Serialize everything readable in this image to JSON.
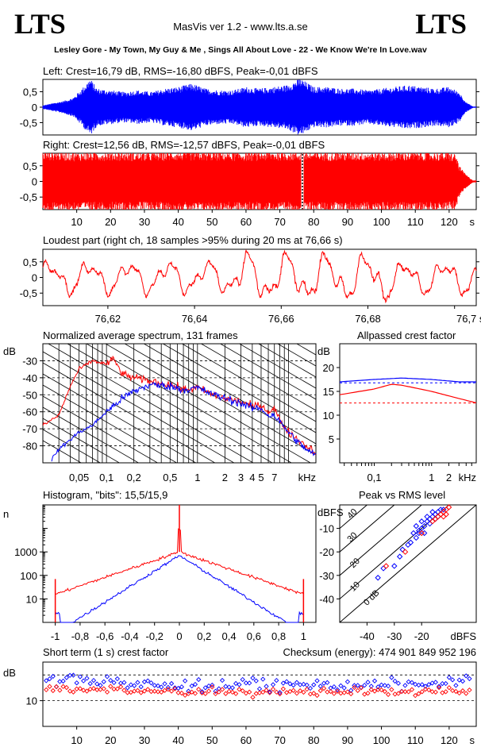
{
  "header": {
    "logo_left": "LTS",
    "logo_right": "LTS",
    "app_title": "MasVis ver 1.2 - www.lts.a.se",
    "file_title": "Lesley Gore - My Town, My Guy & Me , Sings All About Love - 22 - We Know We're In Love.wav"
  },
  "colors": {
    "left": "#0000ff",
    "right": "#ff0000",
    "axis": "#000000",
    "grid": "#000000"
  },
  "chart_data": [
    {
      "id": "left_waveform",
      "type": "area",
      "title": "Left: Crest=16,79 dB, RMS=-16,80 dBFS, Peak=-0,01 dBFS",
      "ylim": [
        -0.9,
        0.9
      ],
      "yticks": [
        "0,5",
        "0",
        "-0,5"
      ],
      "xlim": [
        0,
        128
      ],
      "envelope": [
        [
          0,
          0.05
        ],
        [
          3,
          0.12
        ],
        [
          6,
          0.18
        ],
        [
          9,
          0.28
        ],
        [
          12,
          0.6
        ],
        [
          14,
          0.85
        ],
        [
          16,
          0.55
        ],
        [
          20,
          0.5
        ],
        [
          24,
          0.45
        ],
        [
          28,
          0.5
        ],
        [
          32,
          0.45
        ],
        [
          36,
          0.55
        ],
        [
          40,
          0.6
        ],
        [
          44,
          0.7
        ],
        [
          48,
          0.55
        ],
        [
          52,
          0.5
        ],
        [
          56,
          0.5
        ],
        [
          60,
          0.6
        ],
        [
          64,
          0.55
        ],
        [
          68,
          0.6
        ],
        [
          72,
          0.65
        ],
        [
          76,
          0.85
        ],
        [
          80,
          0.6
        ],
        [
          84,
          0.6
        ],
        [
          88,
          0.55
        ],
        [
          92,
          0.55
        ],
        [
          96,
          0.5
        ],
        [
          100,
          0.55
        ],
        [
          104,
          0.6
        ],
        [
          108,
          0.65
        ],
        [
          112,
          0.6
        ],
        [
          116,
          0.55
        ],
        [
          120,
          0.6
        ],
        [
          123,
          0.45
        ],
        [
          125,
          0.15
        ],
        [
          127,
          0.02
        ]
      ]
    },
    {
      "id": "right_waveform",
      "type": "area",
      "title": "Right: Crest=12,56 dB, RMS=-12,57 dBFS, Peak=-0,01 dBFS",
      "ylim": [
        -0.9,
        0.9
      ],
      "yticks": [
        "0,5",
        "0",
        "-0,5"
      ],
      "xlim": [
        0,
        128
      ],
      "x_unit": "s",
      "xticks": [
        10,
        20,
        30,
        40,
        50,
        60,
        70,
        80,
        90,
        100,
        110,
        120
      ],
      "marker_at": 76.66,
      "envelope": [
        [
          0,
          0.9
        ],
        [
          5,
          0.88
        ],
        [
          10,
          0.85
        ],
        [
          20,
          0.87
        ],
        [
          30,
          0.85
        ],
        [
          40,
          0.88
        ],
        [
          50,
          0.87
        ],
        [
          60,
          0.86
        ],
        [
          70,
          0.88
        ],
        [
          80,
          0.86
        ],
        [
          90,
          0.87
        ],
        [
          100,
          0.86
        ],
        [
          110,
          0.87
        ],
        [
          120,
          0.85
        ],
        [
          122,
          0.8
        ],
        [
          123,
          0.45
        ],
        [
          125,
          0.2
        ],
        [
          127,
          0.03
        ]
      ]
    },
    {
      "id": "loudest_part",
      "type": "line",
      "title": "Loudest part (right ch, 18 samples >95% during 20 ms at 76,66 s)",
      "ylim": [
        -0.9,
        0.9
      ],
      "yticks": [
        "0,5",
        "0",
        "-0,5"
      ],
      "xlim": [
        76.605,
        76.705
      ],
      "xticks": [
        "76,62",
        "76,64",
        "76,66",
        "76,68",
        "76,7 s"
      ],
      "xtick_values": [
        76.62,
        76.64,
        76.66,
        76.68,
        76.7
      ]
    },
    {
      "id": "avg_spectrum",
      "type": "line",
      "title": "Normalized average spectrum, 131 frames",
      "ylabel": "dB",
      "yticks": [
        "-30",
        "-40",
        "-50",
        "-60",
        "-70",
        "-80"
      ],
      "ytick_values": [
        -30,
        -40,
        -50,
        -60,
        -70,
        -80
      ],
      "ylim": [
        -90,
        -20
      ],
      "xlim_khz": [
        0.02,
        20
      ],
      "xticks": [
        "0,05",
        "0,1",
        "0,2",
        "0,5",
        "1",
        "2",
        "3",
        "4",
        "5",
        "7"
      ],
      "xtick_values": [
        0.05,
        0.1,
        0.2,
        0.5,
        1,
        2,
        3,
        4,
        5,
        7
      ],
      "x_unit": "kHz",
      "series": [
        {
          "channel": "right",
          "points": [
            [
              0.02,
              -68
            ],
            [
              0.03,
              -62
            ],
            [
              0.04,
              -45
            ],
            [
              0.05,
              -35
            ],
            [
              0.07,
              -30
            ],
            [
              0.1,
              -32
            ],
            [
              0.12,
              -29
            ],
            [
              0.15,
              -38
            ],
            [
              0.2,
              -40
            ],
            [
              0.3,
              -42
            ],
            [
              0.5,
              -44
            ],
            [
              0.7,
              -47
            ],
            [
              1,
              -46
            ],
            [
              1.5,
              -50
            ],
            [
              2,
              -52
            ],
            [
              3,
              -54
            ],
            [
              4,
              -57
            ],
            [
              5,
              -56
            ],
            [
              6,
              -60
            ],
            [
              7,
              -58
            ],
            [
              8,
              -65
            ],
            [
              10,
              -72
            ],
            [
              14,
              -78
            ],
            [
              20,
              -84
            ]
          ]
        },
        {
          "channel": "left",
          "points": [
            [
              0.025,
              -88
            ],
            [
              0.03,
              -82
            ],
            [
              0.05,
              -72
            ],
            [
              0.07,
              -68
            ],
            [
              0.1,
              -60
            ],
            [
              0.15,
              -52
            ],
            [
              0.2,
              -48
            ],
            [
              0.3,
              -44
            ],
            [
              0.5,
              -45
            ],
            [
              0.7,
              -47
            ],
            [
              1,
              -46
            ],
            [
              1.5,
              -50
            ],
            [
              2,
              -52
            ],
            [
              3,
              -55
            ],
            [
              4,
              -58
            ],
            [
              5,
              -58
            ],
            [
              6,
              -62
            ],
            [
              7,
              -62
            ],
            [
              8,
              -66
            ],
            [
              10,
              -72
            ],
            [
              14,
              -80
            ],
            [
              20,
              -86
            ]
          ]
        }
      ]
    },
    {
      "id": "allpassed_crest",
      "type": "line",
      "title": "Allpassed crest factor",
      "ylabel": "dB",
      "yticks": [
        "20",
        "15",
        "10",
        "5"
      ],
      "ytick_values": [
        20,
        15,
        10,
        5
      ],
      "ylim": [
        0,
        25
      ],
      "xticks": [
        "0,1",
        "1",
        "2",
        "kHz"
      ],
      "xtick_values": [
        0.1,
        1,
        2
      ],
      "xlim_khz": [
        0.025,
        6
      ],
      "series": [
        {
          "channel": "left",
          "points": [
            [
              0.025,
              17
            ],
            [
              0.1,
              17.5
            ],
            [
              0.3,
              17.8
            ],
            [
              1,
              17.5
            ],
            [
              3,
              17
            ],
            [
              6,
              17
            ]
          ]
        },
        {
          "channel": "right",
          "points": [
            [
              0.025,
              14.3
            ],
            [
              0.1,
              15.5
            ],
            [
              0.2,
              16.5
            ],
            [
              0.3,
              16.3
            ],
            [
              1,
              15
            ],
            [
              3,
              13.5
            ],
            [
              6,
              12.6
            ]
          ]
        }
      ],
      "reference": {
        "left": 16.79,
        "right": 12.56
      }
    },
    {
      "id": "histogram",
      "type": "line",
      "title": "Histogram, \"bits\": 15,5/15,9",
      "ylabel": "n",
      "yscale": "log",
      "yticks": [
        "1000",
        "100",
        "10"
      ],
      "ytick_values": [
        1000,
        100,
        10
      ],
      "ylim": [
        1,
        100000
      ],
      "xlim": [
        -1.1,
        1.1
      ],
      "xticks": [
        "-1",
        "-0,8",
        "-0,6",
        "-0,4",
        "-0,2",
        "0",
        "0,2",
        "0,4",
        "0,6",
        "0,8",
        "1"
      ],
      "xtick_values": [
        -1,
        -0.8,
        -0.6,
        -0.4,
        -0.2,
        0,
        0.2,
        0.4,
        0.6,
        0.8,
        1
      ]
    },
    {
      "id": "peak_vs_rms",
      "type": "scatter",
      "title": "Peak vs RMS level",
      "ylabel": "dBFS",
      "xlabel": "dBFS",
      "yticks": [
        "-10",
        "-20",
        "-30",
        "-40"
      ],
      "ytick_values": [
        -10,
        -20,
        -30,
        -40
      ],
      "xticks": [
        "-40",
        "-30",
        "-20"
      ],
      "xtick_values": [
        -40,
        -30,
        -20
      ],
      "xlim": [
        -50,
        0
      ],
      "ylim": [
        -50,
        0
      ],
      "diagonal_labels": [
        "40",
        "30",
        "20",
        "10",
        "0 dB"
      ],
      "series": [
        {
          "channel": "left",
          "points": [
            [
              -36,
              -31
            ],
            [
              -34,
              -27
            ],
            [
              -30,
              -26
            ],
            [
              -28,
              -22
            ],
            [
              -27,
              -19
            ],
            [
              -25,
              -17
            ],
            [
              -24,
              -16
            ],
            [
              -22,
              -14
            ],
            [
              -21,
              -12
            ],
            [
              -20,
              -10
            ],
            [
              -19,
              -9
            ],
            [
              -18,
              -7
            ],
            [
              -17,
              -6
            ],
            [
              -16,
              -5
            ],
            [
              -15,
              -4
            ],
            [
              -14,
              -3
            ],
            [
              -13,
              -2
            ],
            [
              -12,
              -2
            ],
            [
              -22,
              -9
            ],
            [
              -20,
              -7
            ],
            [
              -18,
              -5
            ],
            [
              -16,
              -3
            ],
            [
              -17,
              -8
            ],
            [
              -15,
              -6
            ],
            [
              -14,
              -5
            ],
            [
              -19,
              -12
            ],
            [
              -23,
              -12
            ],
            [
              -21,
              -11
            ]
          ]
        },
        {
          "channel": "right",
          "points": [
            [
              -33,
              -26
            ],
            [
              -26,
              -20
            ],
            [
              -20,
              -12
            ],
            [
              -16,
              -7
            ],
            [
              -14,
              -5
            ],
            [
              -12,
              -3
            ],
            [
              -11,
              -2
            ],
            [
              -13,
              -4
            ],
            [
              -15,
              -6
            ],
            [
              -10,
              -1
            ],
            [
              -12,
              -5
            ],
            [
              -11,
              -4
            ]
          ]
        }
      ]
    },
    {
      "id": "short_term_crest",
      "type": "scatter",
      "title": "Short term (1 s) crest factor",
      "annotation": "Checksum (energy):   474 901 849 952 196",
      "ylabel": "dB",
      "yticks": [
        "10"
      ],
      "ytick_values": [
        10
      ],
      "ylim": [
        0,
        25
      ],
      "dashed_lines": [
        10,
        20
      ],
      "xlim": [
        0,
        128
      ],
      "x_unit": "s",
      "xticks": [
        10,
        20,
        30,
        40,
        50,
        60,
        70,
        80,
        90,
        100,
        110,
        120
      ]
    }
  ]
}
